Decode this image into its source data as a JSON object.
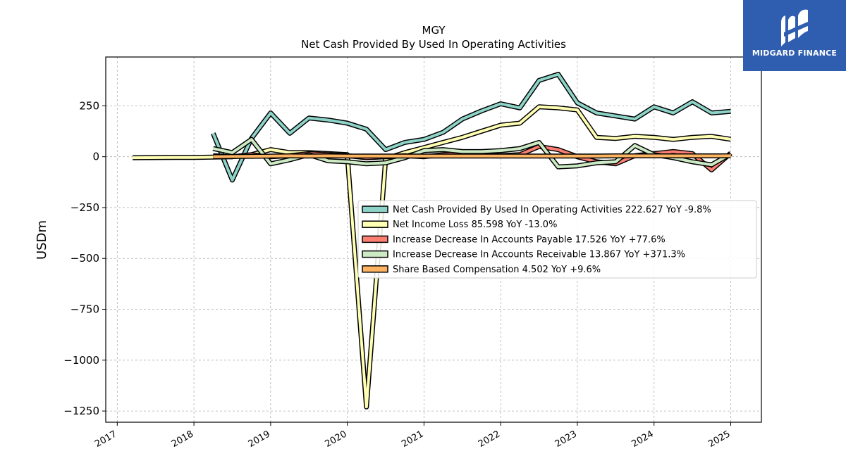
{
  "chart_data": {
    "type": "line",
    "title": "MGY",
    "subtitle": "Net Cash Provided By Used In Operating Activities",
    "ylabel": "USDm",
    "xlabel": "",
    "xlim": [
      2016.85,
      2025.4
    ],
    "ylim": [
      -1305,
      490
    ],
    "yticks": [
      250,
      0,
      -250,
      -500,
      -750,
      -1000,
      -1250
    ],
    "ytick_labels": [
      "250",
      "0",
      "−250",
      "−500",
      "−750",
      "−1000",
      "−1250"
    ],
    "xticks": [
      2017,
      2018,
      2019,
      2020,
      2021,
      2022,
      2023,
      2024,
      2025
    ],
    "xtick_labels": [
      "2017",
      "2018",
      "2019",
      "2020",
      "2021",
      "2022",
      "2023",
      "2024",
      "2025"
    ],
    "grid": true,
    "legend_position": "center-right",
    "series": [
      {
        "name": "Net Cash Provided By Used In Operating Activities",
        "legend_label": "Net Cash Provided By Used In Operating Activities  222.627 YoY -9.8%",
        "color": "#8dd3c7",
        "x": [
          2018.25,
          2018.5,
          2018.75,
          2019.0,
          2019.25,
          2019.5,
          2019.75,
          2020.0,
          2020.25,
          2020.5,
          2020.75,
          2021.0,
          2021.25,
          2021.5,
          2021.75,
          2022.0,
          2022.25,
          2022.5,
          2022.75,
          2023.0,
          2023.25,
          2023.5,
          2023.75,
          2024.0,
          2024.25,
          2024.5,
          2024.75,
          2025.0
        ],
        "y": [
          115,
          -115,
          90,
          215,
          115,
          190,
          180,
          165,
          135,
          35,
          70,
          85,
          120,
          185,
          225,
          260,
          240,
          375,
          405,
          265,
          215,
          200,
          185,
          245,
          215,
          270,
          215,
          222.627
        ]
      },
      {
        "name": "Net Income Loss",
        "legend_label": "Net Income Loss  85.598 YoY -13.0%",
        "color": "#ffffb3",
        "x": [
          2017.2,
          2017.75,
          2018.0,
          2018.25,
          2018.5,
          2018.75,
          2019.0,
          2019.25,
          2019.5,
          2019.75,
          2020.0,
          2020.25,
          2020.5,
          2020.75,
          2021.0,
          2021.25,
          2021.5,
          2021.75,
          2022.0,
          2022.25,
          2022.5,
          2022.75,
          2023.0,
          2023.25,
          2023.5,
          2023.75,
          2024.0,
          2024.25,
          2024.5,
          2024.75,
          2025.0
        ],
        "y": [
          -5,
          -4,
          -4,
          -2,
          0,
          10,
          35,
          20,
          20,
          15,
          10,
          -1230,
          -10,
          20,
          45,
          70,
          95,
          125,
          155,
          165,
          245,
          240,
          230,
          95,
          90,
          100,
          95,
          85,
          95,
          100,
          85.598
        ]
      },
      {
        "name": "Increase Decrease In Accounts Payable",
        "legend_label": "Increase Decrease In Accounts Payable  17.526 YoY +77.6%",
        "color": "#fb8072",
        "x": [
          2018.25,
          2018.5,
          2018.75,
          2019.0,
          2019.25,
          2019.5,
          2019.75,
          2020.0,
          2020.25,
          2020.5,
          2020.75,
          2021.0,
          2021.25,
          2021.5,
          2021.75,
          2022.0,
          2022.25,
          2022.5,
          2022.75,
          2023.0,
          2023.25,
          2023.5,
          2023.75,
          2024.0,
          2024.25,
          2024.5,
          2024.75,
          2025.0
        ],
        "y": [
          5,
          0,
          10,
          0,
          5,
          15,
          10,
          5,
          -5,
          0,
          5,
          0,
          10,
          15,
          10,
          5,
          10,
          50,
          35,
          0,
          -25,
          -35,
          5,
          15,
          25,
          15,
          -65,
          17.526
        ]
      },
      {
        "name": "Increase Decrease In Accounts Receivable",
        "legend_label": "Increase Decrease In Accounts Receivable  13.867 YoY +371.3%",
        "color": "#ccebc5",
        "x": [
          2018.25,
          2018.5,
          2018.75,
          2019.0,
          2019.25,
          2019.5,
          2019.75,
          2020.0,
          2020.25,
          2020.5,
          2020.75,
          2021.0,
          2021.25,
          2021.5,
          2021.75,
          2022.0,
          2022.25,
          2022.5,
          2022.75,
          2023.0,
          2023.25,
          2023.5,
          2023.75,
          2024.0,
          2024.25,
          2024.5,
          2024.75,
          2025.0
        ],
        "y": [
          40,
          20,
          85,
          -35,
          -15,
          10,
          -20,
          -25,
          -35,
          -30,
          -5,
          30,
          35,
          25,
          25,
          30,
          40,
          70,
          -50,
          -45,
          -30,
          -25,
          55,
          10,
          -5,
          -25,
          -40,
          13.867
        ]
      },
      {
        "name": "Share Based Compensation",
        "legend_label": "Share Based Compensation  4.502 YoY +9.6%",
        "color": "#fdb462",
        "x": [
          2018.25,
          2018.5,
          2018.75,
          2019.0,
          2019.25,
          2019.5,
          2019.75,
          2020.0,
          2020.25,
          2020.5,
          2020.75,
          2021.0,
          2021.25,
          2021.5,
          2021.75,
          2022.0,
          2022.25,
          2022.5,
          2022.75,
          2023.0,
          2023.25,
          2023.5,
          2023.75,
          2024.0,
          2024.25,
          2024.5,
          2024.75,
          2025.0
        ],
        "y": [
          0,
          1,
          2,
          3,
          4,
          3,
          4,
          3,
          3,
          3,
          3,
          3,
          3,
          3,
          3,
          3,
          3,
          3,
          3,
          3,
          3,
          4,
          4,
          4,
          4,
          4,
          4,
          4.502
        ]
      }
    ]
  },
  "logo": {
    "text": "MIDGARD FINANCE",
    "background": "#2f5db0"
  }
}
